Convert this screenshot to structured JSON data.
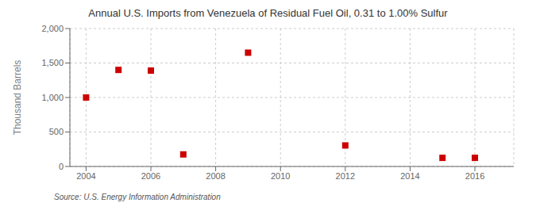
{
  "chart_data": {
    "type": "scatter",
    "title": "Annual U.S. Imports from Venezuela of Residual Fuel Oil, 0.31 to 1.00% Sulfur",
    "ylabel": "Thousand Barrels",
    "annotation": "Source: U.S. Energy Information Administration",
    "x": [
      2004,
      2005,
      2006,
      2007,
      2009,
      2012,
      2015,
      2016
    ],
    "values": [
      1000,
      1400,
      1390,
      175,
      1650,
      305,
      125,
      125
    ],
    "color": "#cc0000",
    "marker": "square",
    "xlim": [
      2003.5,
      2017.2
    ],
    "ylim": [
      0,
      2000
    ],
    "xticks": [
      2004,
      2006,
      2008,
      2010,
      2012,
      2014,
      2016
    ],
    "yticks": [
      0,
      500,
      {
        "value": 1000,
        "label": "1,000"
      },
      {
        "value": 1500,
        "label": "1,500"
      },
      {
        "value": 2000,
        "label": "2,000"
      }
    ],
    "grid": true
  }
}
